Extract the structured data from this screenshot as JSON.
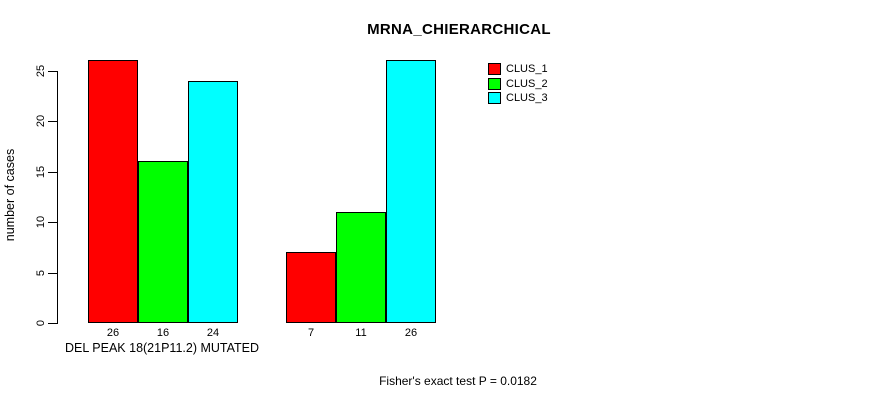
{
  "chart_data": {
    "type": "bar",
    "title": "MRNA_CHIERARCHICAL",
    "ylabel": "number of cases",
    "xlabel": "DEL PEAK 18(21P11.2) MUTATED",
    "annotation": "Fisher's exact test P = 0.0182",
    "ylim": [
      0,
      25
    ],
    "yticks": [
      0,
      5,
      10,
      15,
      20,
      25
    ],
    "grid": false,
    "legend_position": "top-right",
    "bar_border_color": "#000000",
    "groups": [
      {
        "label": "DEL PEAK 18(21P11.2) MUTATED"
      },
      {
        "label": ""
      }
    ],
    "series": [
      {
        "name": "CLUS_1",
        "color": "#ff0000",
        "values": [
          26,
          7
        ]
      },
      {
        "name": "CLUS_2",
        "color": "#00ff00",
        "values": [
          16,
          11
        ]
      },
      {
        "name": "CLUS_3",
        "color": "#00ffff",
        "values": [
          24,
          26
        ]
      }
    ],
    "bar_value_labels": [
      [
        26,
        16,
        24
      ],
      [
        7,
        11,
        26
      ]
    ]
  }
}
